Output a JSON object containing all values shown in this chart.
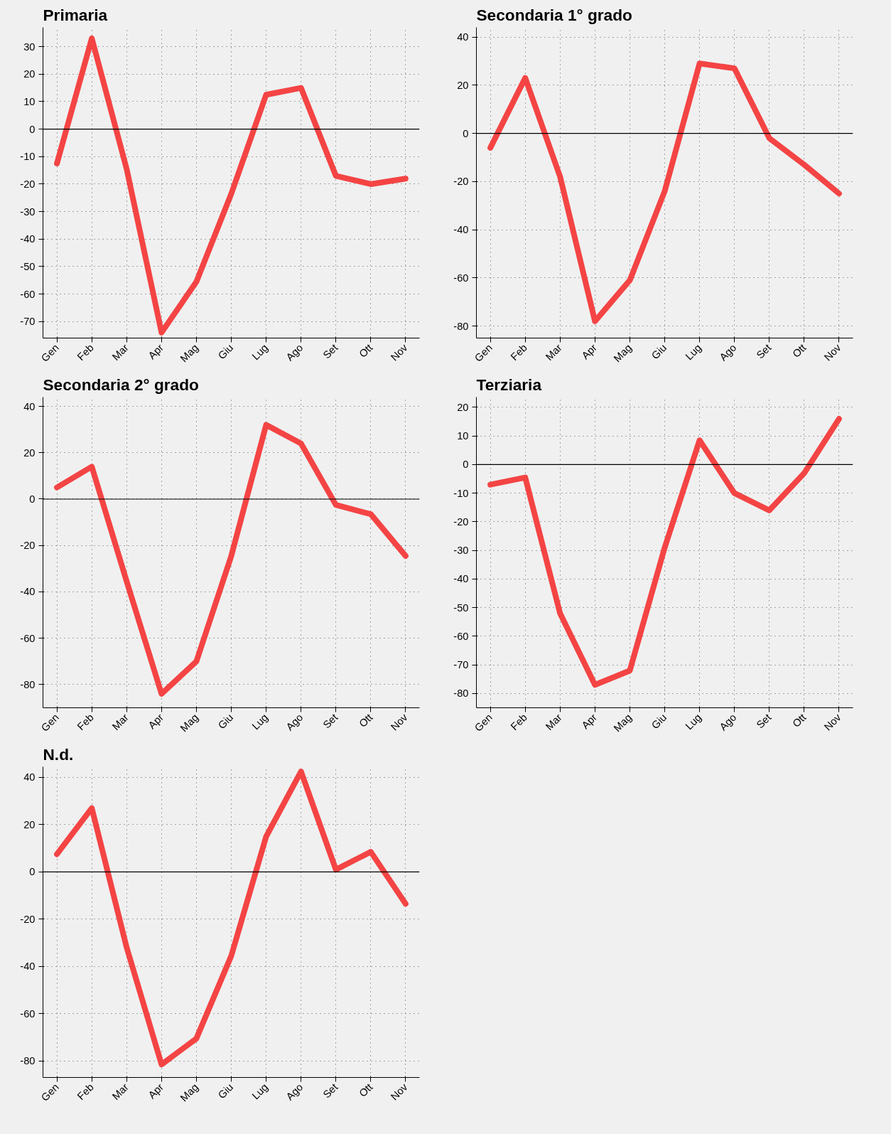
{
  "chart_data": [
    {
      "type": "line",
      "title": "Primaria",
      "categories": [
        "Gen",
        "Feb",
        "Mar",
        "Apr",
        "Mag",
        "Giu",
        "Lug",
        "Ago",
        "Set",
        "Ott",
        "Nov"
      ],
      "series": [
        {
          "color": "#f44444",
          "values": [
            -12.5,
            33,
            -14.5,
            -74,
            -55.5,
            -23.5,
            12.5,
            15,
            -17,
            -20,
            -18
          ]
        }
      ],
      "ylim": [
        -76,
        37
      ],
      "yticks": [
        -70,
        -60,
        -50,
        -40,
        -30,
        -20,
        -10,
        0,
        10,
        20,
        30
      ],
      "grid": true,
      "line_style": "solid",
      "ref_lines": [
        {
          "axis": "y",
          "value": 0,
          "color": "#000000"
        }
      ]
    },
    {
      "type": "line",
      "title": "Secondaria 1° grado",
      "categories": [
        "Gen",
        "Feb",
        "Mar",
        "Apr",
        "Mag",
        "Giu",
        "Lug",
        "Ago",
        "Set",
        "Ott",
        "Nov"
      ],
      "series": [
        {
          "color": "#f44444",
          "values": [
            -6,
            23,
            -18,
            -78,
            -61,
            -24,
            29,
            27,
            -2,
            -13,
            -25
          ]
        }
      ],
      "ylim": [
        -85,
        44
      ],
      "yticks": [
        -80,
        -60,
        -40,
        -20,
        0,
        20,
        40
      ],
      "grid": true,
      "line_style": "solid",
      "ref_lines": [
        {
          "axis": "y",
          "value": 0,
          "color": "#000000"
        }
      ]
    },
    {
      "type": "line",
      "title": "Secondaria 2° grado",
      "categories": [
        "Gen",
        "Feb",
        "Mar",
        "Apr",
        "Mag",
        "Giu",
        "Lug",
        "Ago",
        "Set",
        "Ott",
        "Nov"
      ],
      "series": [
        {
          "color": "#f44444",
          "values": [
            5,
            14,
            -35.5,
            -84,
            -70,
            -24.5,
            32,
            24,
            -2.5,
            -6.5,
            -24.5
          ]
        }
      ],
      "ylim": [
        -90,
        44
      ],
      "yticks": [
        -80,
        -60,
        -40,
        -20,
        0,
        20,
        40
      ],
      "grid": true,
      "line_style": "solid",
      "ref_lines": [
        {
          "axis": "y",
          "value": 0,
          "color": "#000000"
        }
      ]
    },
    {
      "type": "line",
      "title": "Terziaria",
      "categories": [
        "Gen",
        "Feb",
        "Mar",
        "Apr",
        "Mag",
        "Giu",
        "Lug",
        "Ago",
        "Set",
        "Ott",
        "Nov"
      ],
      "series": [
        {
          "color": "#f44444",
          "values": [
            -7,
            -4.5,
            -52,
            -77,
            -72,
            -29,
            8.5,
            -10,
            -16,
            -3,
            16
          ]
        }
      ],
      "ylim": [
        -85,
        23.6
      ],
      "yticks": [
        -80,
        -70,
        -60,
        -50,
        -40,
        -30,
        -20,
        -10,
        0,
        10,
        20
      ],
      "grid": true,
      "line_style": "solid",
      "ref_lines": [
        {
          "axis": "y",
          "value": 0,
          "color": "#000000"
        }
      ]
    },
    {
      "type": "line",
      "title": "N.d.",
      "categories": [
        "Gen",
        "Feb",
        "Mar",
        "Apr",
        "Mag",
        "Giu",
        "Lug",
        "Ago",
        "Set",
        "Ott",
        "Nov"
      ],
      "series": [
        {
          "color": "#f44444",
          "values": [
            7.5,
            27,
            -32,
            -81.5,
            -70.5,
            -35.5,
            15,
            42.5,
            1,
            8.5,
            -13.5
          ]
        }
      ],
      "ylim": [
        -87,
        44.5
      ],
      "yticks": [
        -80,
        -60,
        -40,
        -20,
        0,
        20,
        40
      ],
      "grid": true,
      "line_style": "solid",
      "ref_lines": [
        {
          "axis": "y",
          "value": 0,
          "color": "#000000"
        }
      ]
    }
  ]
}
